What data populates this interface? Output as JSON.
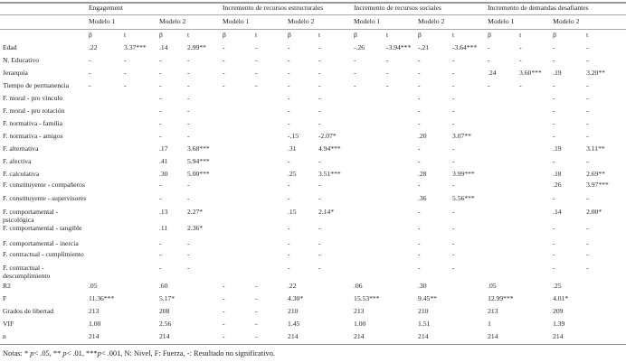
{
  "groups": [
    "Engagement",
    "Incremento de recursos estructurales",
    "Incremento de recursos sociales",
    "Incremento de demandas desafiantes"
  ],
  "model_labels": [
    "Modelo 1",
    "Modelo 2"
  ],
  "stat_labels": [
    "β",
    "t"
  ],
  "rows": [
    {
      "label": "Edad",
      "type": "r1",
      "cells": [
        ".22",
        "3.37***",
        ".14",
        "2.99**",
        "-",
        "-",
        "-",
        "-",
        "-.26",
        "-3.94***",
        "-.21",
        "-3.64***",
        "-",
        "-",
        "-",
        "-"
      ]
    },
    {
      "label": "N. Educativo",
      "type": "r1",
      "cells": [
        "-",
        "-",
        "-",
        "-",
        "-",
        "-",
        "-",
        "-",
        "-",
        "-",
        "-",
        "-",
        "-",
        "-",
        "-",
        "-"
      ]
    },
    {
      "label": "Jerarquía",
      "type": "r1",
      "cells": [
        "-",
        "-",
        "-",
        "-",
        "-",
        "-",
        "-",
        "-",
        "-",
        "-",
        "-",
        "-",
        ".24",
        "3.60***",
        ".19",
        "3.20**"
      ]
    },
    {
      "label": "Tiempo de permanencia",
      "type": "r1",
      "cells": [
        "-",
        "-",
        "-",
        "-",
        "-",
        "-",
        "-",
        "-",
        "-",
        "-",
        "-",
        "-",
        "-",
        "-",
        "-",
        "-"
      ]
    },
    {
      "label": "F. moral - pro vínculo",
      "type": "r1",
      "cells": [
        "",
        "",
        "-",
        "-",
        "",
        "",
        "-",
        "-",
        "",
        "",
        "-",
        "-",
        "",
        "",
        "-",
        "-"
      ]
    },
    {
      "label": "F. moral - pro rotación",
      "type": "r1",
      "cells": [
        "",
        "",
        "-",
        "-",
        "",
        "",
        "-",
        "-",
        "",
        "",
        "-",
        "-",
        "",
        "",
        "-",
        "-"
      ]
    },
    {
      "label": "F. normativa - familia",
      "type": "r1",
      "cells": [
        "",
        "",
        "-",
        "-",
        "",
        "",
        "-",
        "-",
        "",
        "",
        "-",
        "-",
        "",
        "",
        "-",
        "-"
      ]
    },
    {
      "label": "F. normativa - amigos",
      "type": "r1",
      "cells": [
        "",
        "",
        "-",
        "-",
        "",
        "",
        "-.15",
        "-2.07*",
        "",
        "",
        ".20",
        "3.07**",
        "",
        "",
        "-",
        "-"
      ]
    },
    {
      "label": "F. alternativa",
      "type": "r1",
      "cells": [
        "",
        "",
        ".17",
        "3.68***",
        "",
        "",
        ".31",
        "4.94***",
        "",
        "",
        "-",
        "-",
        "",
        "",
        ".19",
        "3.11**"
      ]
    },
    {
      "label": "F. afectiva",
      "type": "r1",
      "cells": [
        "",
        "",
        ".41",
        "5.94***",
        "",
        "",
        "-",
        "-",
        "",
        "",
        "-",
        "-",
        "",
        "",
        "-",
        "-"
      ]
    },
    {
      "label": "F. calculativa",
      "type": "r1",
      "cells": [
        "",
        "",
        ".30",
        "5.00***",
        "",
        "",
        ".25",
        "3.51***",
        "",
        "",
        ".28",
        "3.99***",
        "",
        "",
        ".18",
        "2.69**"
      ]
    },
    {
      "label": "F. constituyente - compañeros",
      "type": "r2",
      "cells": [
        "",
        "",
        "-",
        "-",
        "",
        "",
        "-",
        "-",
        "",
        "",
        "-",
        "-",
        "",
        "",
        ".26",
        "3.97***"
      ]
    },
    {
      "label": "F. constituyente - supervisores",
      "type": "r2",
      "cells": [
        "",
        "",
        "-",
        "-",
        "",
        "",
        "-",
        "-",
        "",
        "",
        ".36",
        "5.56***",
        "",
        "",
        "-",
        "-"
      ]
    },
    {
      "label": "F. comportamental - psicológica",
      "type": "r2",
      "cells": [
        "",
        "",
        ".13",
        "2.27*",
        "",
        "",
        ".15",
        "2.14*",
        "",
        "",
        "-",
        "-",
        "",
        "",
        ".14",
        "2.00*"
      ]
    },
    {
      "label": "F. comportamental - tangible",
      "type": "r2",
      "cells": [
        "",
        "",
        ".11",
        "2.36*",
        "",
        "",
        "-",
        "-",
        "",
        "",
        "-",
        "-",
        "",
        "",
        "-",
        "-"
      ]
    },
    {
      "label": "F. comportamental - inercia",
      "type": "r1",
      "cells": [
        "",
        "",
        "-",
        "-",
        "",
        "",
        "-",
        "-",
        "",
        "",
        "-",
        "-",
        "",
        "",
        "-",
        "-"
      ]
    },
    {
      "label": "F. contractual - cumplimiento",
      "type": "r2",
      "cells": [
        "",
        "",
        "-",
        "-",
        "",
        "",
        "-",
        "-",
        "",
        "",
        "-",
        "-",
        "",
        "",
        "-",
        "-"
      ]
    },
    {
      "label": "F. contractual - descumplimiento",
      "type": "r2",
      "cells": [
        "",
        "",
        "-",
        "-",
        "",
        "",
        "-",
        "-",
        "",
        "",
        "-",
        "-",
        "",
        "",
        "-",
        "-"
      ]
    },
    {
      "label": "R2",
      "type": "r1",
      "cells": [
        ".05",
        "",
        ".60",
        "",
        "-",
        "-",
        ".22",
        "",
        ".06",
        "",
        ".30",
        "",
        ".05",
        "",
        ".25",
        ""
      ]
    },
    {
      "label": "F",
      "type": "r1",
      "cells": [
        "11.36***",
        "",
        "5.17*",
        "",
        "-",
        "-",
        "4.30*",
        "",
        "15.53***",
        "",
        "9.45**",
        "",
        "12.99***",
        "",
        "4.01*",
        ""
      ]
    },
    {
      "label": "Grados de libertad",
      "type": "r1",
      "cells": [
        "213",
        "",
        "208",
        "",
        "-",
        "-",
        "210",
        "",
        "213",
        "",
        "210",
        "",
        "213",
        "",
        "209",
        ""
      ]
    },
    {
      "label": "VIF",
      "type": "r1",
      "cells": [
        "1.00",
        "",
        "2.56",
        "",
        "-",
        "-",
        "1.45",
        "",
        "1.00",
        "",
        "1.51",
        "",
        "1",
        "",
        "1.39",
        ""
      ]
    },
    {
      "label": "n",
      "type": "r1",
      "cells": [
        "214",
        "",
        "214",
        "",
        "-",
        "-",
        "214",
        "",
        "214",
        "",
        "214",
        "",
        "214",
        "",
        "214",
        ""
      ]
    }
  ],
  "notes": {
    "prefix": "Notas: * ",
    "p1": "p",
    "t1": "< .05, ** ",
    "p2": "p",
    "t2": "< .01, ***",
    "p3": "p",
    "t3": "< .001, N: Nivel, F: Fuerza, -: Resultado no significativo."
  }
}
